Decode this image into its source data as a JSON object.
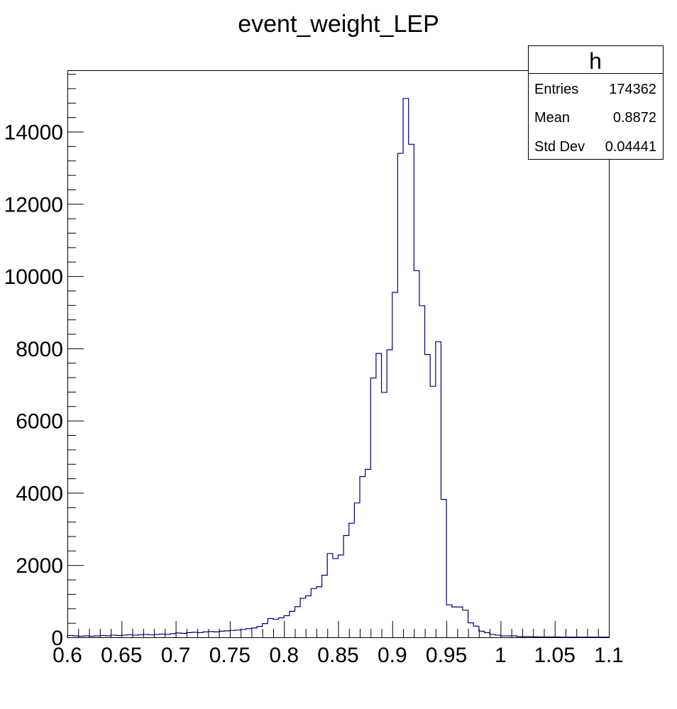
{
  "chart_data": {
    "type": "bar",
    "title": "event_weight_LEP",
    "xlabel": "",
    "ylabel": "",
    "xlim": [
      0.6,
      1.1
    ],
    "ylim": [
      0,
      15700
    ],
    "bin_width": 0.005,
    "x_ticks": [
      "0.6",
      "0.65",
      "0.7",
      "0.75",
      "0.8",
      "0.85",
      "0.9",
      "0.95",
      "1",
      "1.05",
      "1.1"
    ],
    "y_ticks": [
      "0",
      "2000",
      "4000",
      "6000",
      "8000",
      "10000",
      "12000",
      "14000"
    ],
    "series": [
      {
        "color": "#000080",
        "x_bin_lows": [
          0.6,
          0.605,
          0.61,
          0.615,
          0.62,
          0.625,
          0.63,
          0.635,
          0.64,
          0.645,
          0.65,
          0.655,
          0.66,
          0.665,
          0.67,
          0.675,
          0.68,
          0.685,
          0.69,
          0.695,
          0.7,
          0.705,
          0.71,
          0.715,
          0.72,
          0.725,
          0.73,
          0.735,
          0.74,
          0.745,
          0.75,
          0.755,
          0.76,
          0.765,
          0.77,
          0.775,
          0.78,
          0.785,
          0.79,
          0.795,
          0.8,
          0.805,
          0.81,
          0.815,
          0.82,
          0.825,
          0.83,
          0.835,
          0.84,
          0.845,
          0.85,
          0.855,
          0.86,
          0.865,
          0.87,
          0.875,
          0.88,
          0.885,
          0.89,
          0.895,
          0.9,
          0.905,
          0.91,
          0.915,
          0.92,
          0.925,
          0.93,
          0.935,
          0.94,
          0.945,
          0.95,
          0.955,
          0.96,
          0.965,
          0.97,
          0.975,
          0.98,
          0.985,
          0.99,
          0.995,
          1.0,
          1.005,
          1.01,
          1.015,
          1.02,
          1.025,
          1.03,
          1.035,
          1.04,
          1.045,
          1.05,
          1.055,
          1.06,
          1.065,
          1.07,
          1.075,
          1.08,
          1.085,
          1.09,
          1.095
        ],
        "values": [
          50,
          40,
          30,
          40,
          30,
          40,
          50,
          40,
          60,
          50,
          60,
          70,
          60,
          70,
          80,
          70,
          80,
          90,
          80,
          100,
          120,
          110,
          130,
          140,
          130,
          150,
          160,
          150,
          170,
          180,
          190,
          200,
          220,
          240,
          260,
          300,
          380,
          520,
          500,
          540,
          600,
          720,
          850,
          1080,
          1150,
          1350,
          1400,
          1720,
          2320,
          2180,
          2280,
          2820,
          3160,
          3720,
          4450,
          4650,
          7180,
          7860,
          6780,
          7960,
          9550,
          13400,
          14920,
          13650,
          10150,
          9180,
          7830,
          6950,
          8180,
          3820,
          900,
          840,
          840,
          750,
          400,
          310,
          170,
          130,
          80,
          60,
          40,
          40,
          40,
          20,
          20,
          20,
          15,
          10,
          10,
          10,
          10,
          5,
          5,
          5,
          5,
          5,
          5,
          5,
          5,
          5
        ]
      }
    ],
    "stats": {
      "name": "h",
      "rows": [
        {
          "label": "Entries",
          "value": "174362"
        },
        {
          "label": "Mean",
          "value": "0.8872"
        },
        {
          "label": "Std Dev",
          "value": "0.04441"
        }
      ]
    }
  }
}
